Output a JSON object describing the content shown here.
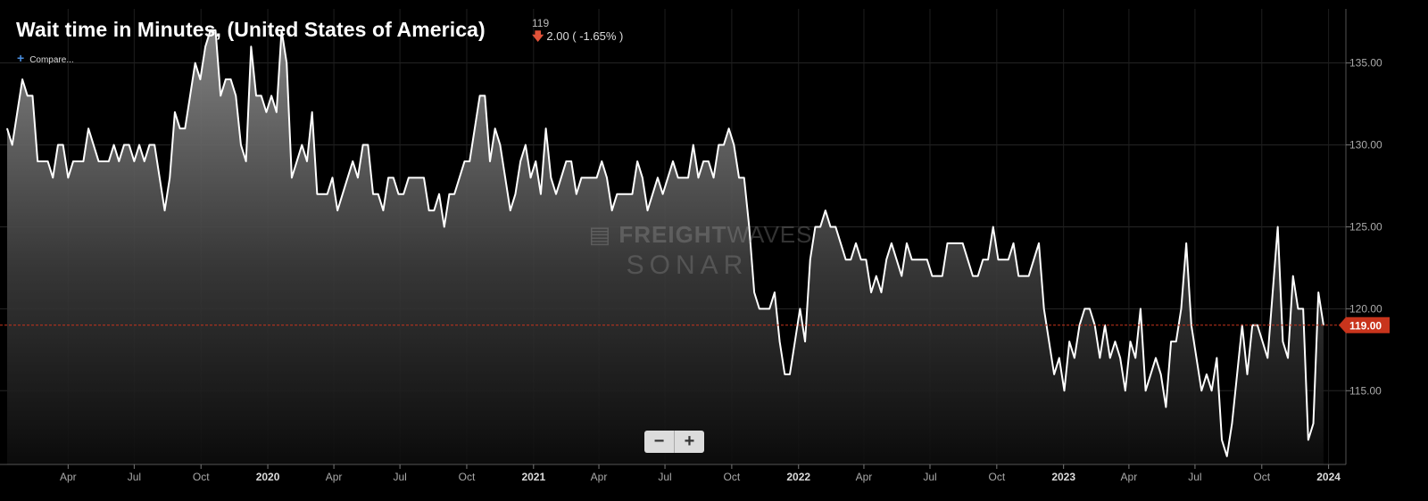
{
  "header": {
    "title": "Wait time in Minutes, (United States of America)",
    "last_value": "119",
    "change": "2.00 ( -1.65% )",
    "compare_label": "Compare..."
  },
  "watermark": {
    "line1_bold": "FREIGHT",
    "line1_light": "WAVES",
    "line2": "SONAR"
  },
  "zoom": {
    "minus": "−",
    "plus": "+"
  },
  "colors": {
    "background": "#000000",
    "line": "#ffffff",
    "reference": "#c8341c",
    "grid": "#2a2a2a"
  },
  "chart_data": {
    "type": "area",
    "title": "Wait time in Minutes, (United States of America)",
    "xlabel": "",
    "ylabel": "",
    "x_range": [
      "2019-01-07",
      "2024-01-15"
    ],
    "ylim": [
      110.5,
      138.3
    ],
    "y_ticks": [
      115,
      120,
      125,
      130,
      135
    ],
    "y_tick_labels": [
      "115.00",
      "120.00",
      "125.00",
      "130.00",
      "135.00"
    ],
    "x_ticks": [
      {
        "date": "2019-04-01",
        "label": "Apr",
        "bold": false
      },
      {
        "date": "2019-07-01",
        "label": "Jul",
        "bold": false
      },
      {
        "date": "2019-10-01",
        "label": "Oct",
        "bold": false
      },
      {
        "date": "2020-01-01",
        "label": "2020",
        "bold": true
      },
      {
        "date": "2020-04-01",
        "label": "Apr",
        "bold": false
      },
      {
        "date": "2020-07-01",
        "label": "Jul",
        "bold": false
      },
      {
        "date": "2020-10-01",
        "label": "Oct",
        "bold": false
      },
      {
        "date": "2021-01-01",
        "label": "2021",
        "bold": true
      },
      {
        "date": "2021-04-01",
        "label": "Apr",
        "bold": false
      },
      {
        "date": "2021-07-01",
        "label": "Jul",
        "bold": false
      },
      {
        "date": "2021-10-01",
        "label": "Oct",
        "bold": false
      },
      {
        "date": "2022-01-01",
        "label": "2022",
        "bold": true
      },
      {
        "date": "2022-04-01",
        "label": "Apr",
        "bold": false
      },
      {
        "date": "2022-07-01",
        "label": "Jul",
        "bold": false
      },
      {
        "date": "2022-10-01",
        "label": "Oct",
        "bold": false
      },
      {
        "date": "2023-01-01",
        "label": "2023",
        "bold": true
      },
      {
        "date": "2023-04-01",
        "label": "Apr",
        "bold": false
      },
      {
        "date": "2023-07-01",
        "label": "Jul",
        "bold": false
      },
      {
        "date": "2023-10-01",
        "label": "Oct",
        "bold": false
      },
      {
        "date": "2024-01-01",
        "label": "2024",
        "bold": true
      }
    ],
    "current_value": 119,
    "current_value_label": "119.00",
    "grid": true,
    "start_date": "2019-01-07",
    "interval_days": 7,
    "series": [
      {
        "values": [
          131,
          130,
          132,
          134,
          133,
          133,
          129,
          129,
          129,
          128,
          130,
          130,
          128,
          129,
          129,
          129,
          131,
          130,
          129,
          129,
          129,
          130,
          129,
          130,
          130,
          129,
          130,
          129,
          130,
          130,
          128,
          126,
          128,
          132,
          131,
          131,
          133,
          135,
          134,
          136,
          137,
          137,
          133,
          134,
          134,
          133,
          130,
          129,
          136,
          133,
          133,
          132,
          133,
          132,
          137,
          135,
          128,
          129,
          130,
          129,
          132,
          127,
          127,
          127,
          128,
          126,
          127,
          128,
          129,
          128,
          130,
          130,
          127,
          127,
          126,
          128,
          128,
          127,
          127,
          128,
          128,
          128,
          128,
          126,
          126,
          127,
          125,
          127,
          127,
          128,
          129,
          129,
          131,
          133,
          133,
          129,
          131,
          130,
          128,
          126,
          127,
          129,
          130,
          128,
          129,
          127,
          131,
          128,
          127,
          128,
          129,
          129,
          127,
          128,
          128,
          128,
          128,
          129,
          128,
          126,
          127,
          127,
          127,
          127,
          129,
          128,
          126,
          127,
          128,
          127,
          128,
          129,
          128,
          128,
          128,
          130,
          128,
          129,
          129,
          128,
          130,
          130,
          131,
          130,
          128,
          128,
          125,
          121,
          120,
          120,
          120,
          121,
          118,
          116,
          116,
          118,
          120,
          118,
          123,
          125,
          125,
          126,
          125,
          125,
          124,
          123,
          123,
          124,
          123,
          123,
          121,
          122,
          121,
          123,
          124,
          123,
          122,
          124,
          123,
          123,
          123,
          123,
          122,
          122,
          122,
          124,
          124,
          124,
          124,
          123,
          122,
          122,
          123,
          123,
          125,
          123,
          123,
          123,
          124,
          122,
          122,
          122,
          123,
          124,
          120,
          118,
          116,
          117,
          115,
          118,
          117,
          119,
          120,
          120,
          119,
          117,
          119,
          117,
          118,
          117,
          115,
          118,
          117,
          120,
          115,
          116,
          117,
          116,
          114,
          118,
          118,
          120,
          124,
          119,
          117,
          115,
          116,
          115,
          117,
          112,
          111,
          113,
          116,
          119,
          116,
          119,
          119,
          118,
          117,
          121,
          125,
          118,
          117,
          122,
          120,
          120,
          112,
          113,
          121,
          119
        ]
      }
    ]
  }
}
